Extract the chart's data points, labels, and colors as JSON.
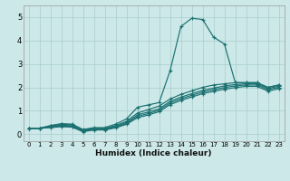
{
  "xlabel": "Humidex (Indice chaleur)",
  "xlim": [
    -0.5,
    23.5
  ],
  "ylim": [
    -0.3,
    5.5
  ],
  "xticks": [
    0,
    1,
    2,
    3,
    4,
    5,
    6,
    7,
    8,
    9,
    10,
    11,
    12,
    13,
    14,
    15,
    16,
    17,
    18,
    19,
    20,
    21,
    22,
    23
  ],
  "yticks": [
    0,
    1,
    2,
    3,
    4,
    5
  ],
  "bg_color": "#cce8e8",
  "grid_color": "#aacccc",
  "line_color": "#1a7070",
  "series1_x": [
    0,
    1,
    2,
    3,
    4,
    5,
    6,
    7,
    8,
    9,
    10,
    11,
    12,
    13,
    14,
    15,
    16,
    17,
    18,
    19,
    20,
    21,
    22,
    23
  ],
  "series1_y": [
    0.25,
    0.25,
    0.37,
    0.45,
    0.43,
    0.2,
    0.28,
    0.28,
    0.43,
    0.65,
    1.15,
    1.25,
    1.35,
    2.7,
    4.6,
    4.95,
    4.9,
    4.15,
    3.85,
    2.2,
    2.2,
    2.2,
    2.0,
    2.1
  ],
  "series2_x": [
    0,
    1,
    2,
    3,
    4,
    5,
    6,
    7,
    8,
    9,
    10,
    11,
    12,
    13,
    14,
    15,
    16,
    17,
    18,
    19,
    20,
    21,
    22,
    23
  ],
  "series2_y": [
    0.25,
    0.25,
    0.35,
    0.42,
    0.4,
    0.18,
    0.25,
    0.25,
    0.37,
    0.55,
    0.9,
    1.05,
    1.2,
    1.5,
    1.7,
    1.85,
    2.0,
    2.1,
    2.15,
    2.2,
    2.2,
    2.2,
    2.0,
    2.1
  ],
  "series3_x": [
    0,
    1,
    2,
    3,
    4,
    5,
    6,
    7,
    8,
    9,
    10,
    11,
    12,
    13,
    14,
    15,
    16,
    17,
    18,
    19,
    20,
    21,
    22,
    23
  ],
  "series3_y": [
    0.25,
    0.25,
    0.32,
    0.38,
    0.36,
    0.15,
    0.22,
    0.22,
    0.33,
    0.5,
    0.82,
    0.95,
    1.08,
    1.4,
    1.58,
    1.73,
    1.87,
    1.97,
    2.06,
    2.12,
    2.15,
    2.15,
    1.95,
    2.05
  ],
  "series4_x": [
    0,
    1,
    2,
    3,
    4,
    5,
    6,
    7,
    8,
    9,
    10,
    11,
    12,
    13,
    14,
    15,
    16,
    17,
    18,
    19,
    20,
    21,
    22,
    23
  ],
  "series4_y": [
    0.25,
    0.25,
    0.3,
    0.35,
    0.33,
    0.13,
    0.2,
    0.2,
    0.3,
    0.46,
    0.76,
    0.88,
    1.02,
    1.33,
    1.51,
    1.66,
    1.8,
    1.9,
    1.99,
    2.06,
    2.1,
    2.1,
    1.9,
    2.0
  ],
  "series5_x": [
    0,
    1,
    2,
    3,
    4,
    5,
    6,
    7,
    8,
    9,
    10,
    11,
    12,
    13,
    14,
    15,
    16,
    17,
    18,
    19,
    20,
    21,
    22,
    23
  ],
  "series5_y": [
    0.25,
    0.25,
    0.28,
    0.32,
    0.3,
    0.1,
    0.18,
    0.18,
    0.27,
    0.42,
    0.7,
    0.82,
    0.96,
    1.26,
    1.44,
    1.59,
    1.73,
    1.83,
    1.92,
    1.99,
    2.04,
    2.04,
    1.84,
    1.94
  ]
}
